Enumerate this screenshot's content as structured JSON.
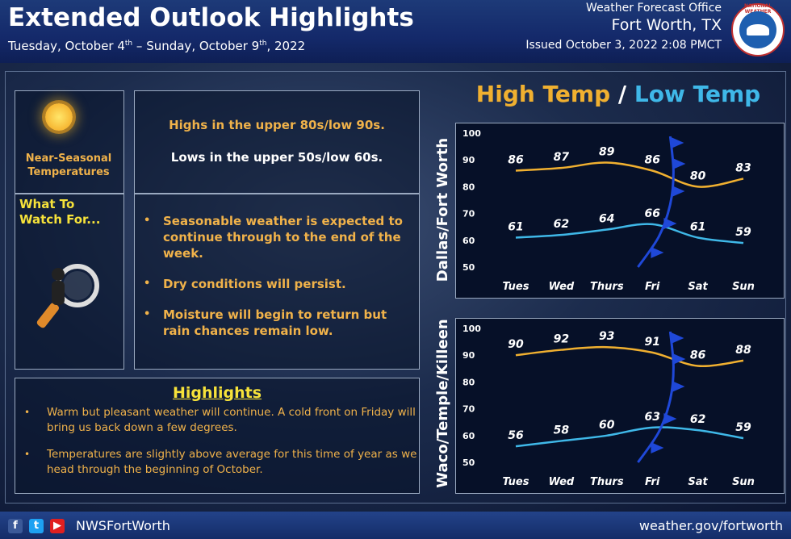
{
  "header": {
    "title": "Extended Outlook Highlights",
    "subtitle_start": "Tuesday, October 4",
    "subtitle_start_suffix": "th",
    "subtitle_dash": " – ",
    "subtitle_end": "Sunday, October 9",
    "subtitle_end_suffix": "th",
    "subtitle_year": ", 2022",
    "office": "Weather Forecast Office",
    "city": "Fort Worth, TX",
    "issued": "Issued October 3, 2022 2:08 PMCT",
    "logo_text": "NATIONAL WEATHER SERVICE"
  },
  "left": {
    "seasonal_label": "Near-Seasonal Temperatures",
    "watch_label_1": "What To",
    "watch_label_2": "Watch For...",
    "highs_text": "Highs in the upper 80s/low 90s.",
    "lows_text": "Lows in the upper 50s/low 60s.",
    "bullets": [
      "Seasonable weather is expected to continue through to the end of the week.",
      "Dry conditions will persist.",
      "Moisture will begin to return but rain chances remain low."
    ],
    "highlights_title": "Highlights",
    "highlights": [
      "Warm but pleasant weather will continue. A cold front on Friday will bring us back down a few degrees.",
      "Temperatures are slightly above average for this time of year as we head through the beginning of October."
    ]
  },
  "chart_header": {
    "high": "High Temp",
    "slash": " / ",
    "low": "Low Temp"
  },
  "colors": {
    "high": "#f0b030",
    "low": "#3fb8e8",
    "front": "#1f48d8"
  },
  "chart_data": [
    {
      "type": "line",
      "location": "Dallas/Fort Worth",
      "categories": [
        "Tues",
        "Wed",
        "Thurs",
        "Fri",
        "Sat",
        "Sun"
      ],
      "series": [
        {
          "name": "High Temp",
          "values": [
            86,
            87,
            89,
            86,
            80,
            83
          ]
        },
        {
          "name": "Low Temp",
          "values": [
            61,
            62,
            64,
            66,
            61,
            59
          ]
        }
      ],
      "yticks": [
        50,
        60,
        70,
        80,
        90,
        100
      ],
      "ylim": [
        50,
        100
      ],
      "cold_front": "Fri"
    },
    {
      "type": "line",
      "location": "Waco/Temple/Killeen",
      "categories": [
        "Tues",
        "Wed",
        "Thurs",
        "Fri",
        "Sat",
        "Sun"
      ],
      "series": [
        {
          "name": "High Temp",
          "values": [
            90,
            92,
            93,
            91,
            86,
            88
          ]
        },
        {
          "name": "Low Temp",
          "values": [
            56,
            58,
            60,
            63,
            62,
            59
          ]
        }
      ],
      "yticks": [
        50,
        60,
        70,
        80,
        90,
        100
      ],
      "ylim": [
        50,
        100
      ],
      "cold_front": "Fri"
    }
  ],
  "footer": {
    "facebook": "f",
    "twitter": "t",
    "youtube": "▶",
    "handle": "NWSFortWorth",
    "site": "weather.gov/fortworth"
  }
}
